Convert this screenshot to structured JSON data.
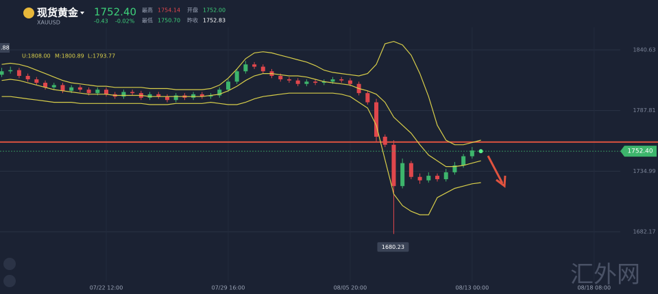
{
  "header": {
    "title": "现货黄金",
    "symbol": "XAUUSD",
    "price": "1752.40",
    "change": "-0.43",
    "change_pct": "-0.02%",
    "stats": [
      {
        "label": "最高",
        "value": "1754.14"
      },
      {
        "label": "开盘",
        "value": "1752.00"
      },
      {
        "label": "最低",
        "value": "1750.70"
      },
      {
        "label": "昨收",
        "value": "1752.83"
      }
    ],
    "watermark": "汇外网"
  },
  "chart_data": {
    "type": "candlestick",
    "bb_labels": [
      "U:1808.00",
      "M:1800.89",
      "L:1793.77"
    ],
    "left_tag": ".88",
    "low_label": "1680.23",
    "categories": [
      null,
      null,
      null,
      null,
      null,
      null,
      null,
      null,
      null,
      null,
      null,
      null,
      "07/22 12:00",
      null,
      null,
      null,
      null,
      null,
      null,
      null,
      null,
      null,
      null,
      null,
      null,
      null,
      "07/29 16:00",
      null,
      null,
      null,
      null,
      null,
      null,
      null,
      null,
      null,
      null,
      null,
      null,
      null,
      "08/05 20:00",
      null,
      null,
      null,
      null,
      null,
      null,
      null,
      null,
      null,
      null,
      null,
      null,
      null,
      "08/13 00:00",
      null,
      null,
      null,
      null,
      null,
      null,
      null,
      null,
      null,
      null,
      null,
      null,
      null,
      "08/18 08:00"
    ],
    "open": [
      1819,
      1822,
      1823,
      1818,
      1815,
      1812,
      1808,
      1810,
      1805,
      1808,
      1806,
      1803,
      1806,
      1802,
      1800,
      1804,
      1803,
      1799,
      1802,
      1800,
      1797,
      1801,
      1799,
      1802,
      1800,
      1801,
      1806,
      1813,
      1822,
      1828,
      1826,
      1822,
      1818,
      1815,
      1814,
      1811,
      1813,
      1812,
      1813,
      1815,
      1814,
      1811,
      1803,
      1795,
      1765,
      1758,
      1722,
      1742,
      1730,
      1727,
      1731,
      1728,
      1734,
      1740,
      1748,
      1752.0,
      null,
      null,
      null,
      null,
      null,
      null,
      null,
      null,
      null,
      null,
      null,
      null,
      null
    ],
    "high": [
      1825,
      1826,
      1825,
      1820,
      1817,
      1814,
      1812,
      1812,
      1810,
      1810,
      1808,
      1808,
      1808,
      1804,
      1806,
      1806,
      1805,
      1804,
      1804,
      1802,
      1803,
      1803,
      1804,
      1804,
      1803,
      1808,
      1815,
      1824,
      1831,
      1830,
      1828,
      1824,
      1820,
      1817,
      1816,
      1815,
      1815,
      1815,
      1817,
      1817,
      1816,
      1813,
      1805,
      1798,
      1767,
      1762,
      1746,
      1744,
      1733,
      1734,
      1733,
      1737,
      1743,
      1750,
      1756,
      1754.14,
      null,
      null,
      null,
      null,
      null,
      null,
      null,
      null,
      null,
      null,
      null,
      null,
      null
    ],
    "low": [
      1817,
      1820,
      1816,
      1813,
      1810,
      1806,
      1806,
      1803,
      1803,
      1804,
      1801,
      1801,
      1800,
      1798,
      1798,
      1801,
      1797,
      1797,
      1798,
      1795,
      1795,
      1797,
      1797,
      1798,
      1798,
      1799,
      1804,
      1811,
      1820,
      1824,
      1820,
      1816,
      1813,
      1812,
      1809,
      1809,
      1810,
      1810,
      1811,
      1812,
      1809,
      1801,
      1793,
      1760,
      1756,
      1680.23,
      1720,
      1728,
      1724,
      1725,
      1726,
      1726,
      1732,
      1738,
      1746,
      1750.7,
      null,
      null,
      null,
      null,
      null,
      null,
      null,
      null,
      null,
      null,
      null,
      null,
      null
    ],
    "close": [
      1822,
      1823,
      1818,
      1815,
      1812,
      1808,
      1810,
      1805,
      1808,
      1806,
      1803,
      1806,
      1802,
      1800,
      1804,
      1803,
      1799,
      1802,
      1800,
      1797,
      1801,
      1799,
      1802,
      1800,
      1801,
      1806,
      1813,
      1822,
      1828,
      1826,
      1822,
      1818,
      1815,
      1814,
      1811,
      1813,
      1812,
      1813,
      1815,
      1814,
      1811,
      1803,
      1795,
      1765,
      1758,
      1722,
      1742,
      1730,
      1727,
      1731,
      1728,
      1734,
      1740,
      1748,
      1753,
      1752.4,
      null,
      null,
      null,
      null,
      null,
      null,
      null,
      null,
      null,
      null,
      null,
      null,
      null
    ],
    "bands": [
      {
        "name": "upper",
        "values": [
          1828,
          1829,
          1828,
          1826,
          1823,
          1820,
          1817,
          1814,
          1812,
          1811,
          1810,
          1809,
          1809,
          1808,
          1808,
          1808,
          1808,
          1807,
          1807,
          1807,
          1806,
          1806,
          1806,
          1806,
          1807,
          1810,
          1816,
          1824,
          1833,
          1838,
          1839,
          1838,
          1836,
          1834,
          1832,
          1830,
          1827,
          1823,
          1821,
          1820,
          1819,
          1818,
          1820,
          1828,
          1846,
          1848,
          1845,
          1836,
          1820,
          1800,
          1775,
          1762,
          1758,
          1758,
          1760,
          1762,
          null,
          null,
          null,
          null,
          null,
          null,
          null,
          null,
          null,
          null,
          null,
          null,
          null
        ]
      },
      {
        "name": "middle",
        "values": [
          1814,
          1815,
          1814,
          1812,
          1810,
          1808,
          1806,
          1805,
          1804,
          1803,
          1802,
          1802,
          1802,
          1801,
          1801,
          1801,
          1801,
          1800,
          1800,
          1800,
          1800,
          1800,
          1800,
          1800,
          1801,
          1802,
          1805,
          1809,
          1814,
          1818,
          1820,
          1820,
          1819,
          1818,
          1818,
          1817,
          1815,
          1813,
          1812,
          1811,
          1810,
          1807,
          1805,
          1802,
          1795,
          1782,
          1775,
          1768,
          1758,
          1749,
          1744,
          1739,
          1739,
          1740,
          1742,
          1744,
          null,
          null,
          null,
          null,
          null,
          null,
          null,
          null,
          null,
          null,
          null,
          null,
          null
        ]
      },
      {
        "name": "lower",
        "values": [
          1800,
          1800,
          1799,
          1798,
          1797,
          1796,
          1795,
          1795,
          1795,
          1794,
          1794,
          1794,
          1794,
          1794,
          1794,
          1794,
          1794,
          1793,
          1793,
          1793,
          1794,
          1794,
          1794,
          1794,
          1795,
          1794,
          1793,
          1793,
          1795,
          1798,
          1800,
          1801,
          1802,
          1803,
          1803,
          1803,
          1803,
          1803,
          1803,
          1802,
          1800,
          1795,
          1790,
          1775,
          1745,
          1715,
          1705,
          1700,
          1697,
          1697,
          1712,
          1716,
          1720,
          1722,
          1724,
          1725,
          null,
          null,
          null,
          null,
          null,
          null,
          null,
          null,
          null,
          null,
          null,
          null,
          null
        ]
      }
    ],
    "band_color": "#d9cf4a",
    "up_color": "#3db56c",
    "down_color": "#e0474c",
    "hline": 1760.4,
    "hline_color": "#e0533f",
    "ylim": [
      1628,
      1884.1
    ],
    "yticks": [
      1840.63,
      1787.81,
      1734.99,
      1682.17
    ],
    "grid": true
  }
}
